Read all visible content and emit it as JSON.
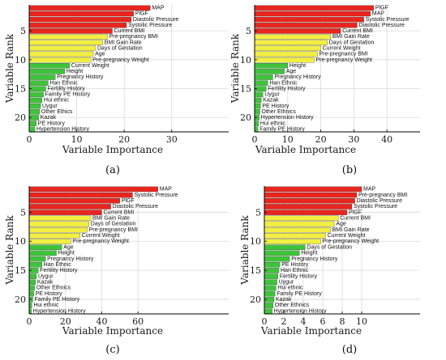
{
  "colors": {
    "red": "#e8261e",
    "yellow": "#f2ef42",
    "green": "#3ec43a",
    "axis": "#000000",
    "grid": "#d9d9d9"
  },
  "chart_data": [
    {
      "type": "bar",
      "orientation": "horizontal",
      "caption": "(a)",
      "xlabel": "Variable Importance",
      "ylabel": "Variable Rank",
      "xlim": [
        0,
        42
      ],
      "xticks": [
        0,
        10,
        20,
        30
      ],
      "yticks": [
        5,
        10,
        15,
        20
      ],
      "grid": true,
      "labels": [
        "MAP",
        "PlGF",
        "Diastolic Pressure",
        "Systolic Pressure",
        "Current BMI",
        "Pre-pregnancy BMI",
        "BMI Gain Rate",
        "Days of Gestation",
        "Age",
        "Pre-pregnancy Weight",
        "Current Weight",
        "Height",
        "Pregnancy History",
        "Han Ethnic",
        "Fertility History",
        "Family PE History",
        "Hui ethnic",
        "Uygur",
        "Other Ethics",
        "Kazak",
        "PE History",
        "Hypertension History"
      ],
      "values": [
        25.5,
        22,
        21.5,
        20.5,
        17.5,
        16.5,
        15.5,
        14,
        13.5,
        13,
        8.5,
        7.5,
        5.5,
        4,
        3.5,
        3,
        2.7,
        2.4,
        2.2,
        2,
        1.5,
        1.2
      ],
      "groups": [
        "red",
        "red",
        "red",
        "red",
        "red",
        "yellow",
        "yellow",
        "yellow",
        "yellow",
        "yellow",
        "green",
        "green",
        "green",
        "green",
        "green",
        "green",
        "green",
        "green",
        "green",
        "green",
        "green",
        "green"
      ]
    },
    {
      "type": "bar",
      "orientation": "horizontal",
      "caption": "(b)",
      "xlabel": "Variable Importance",
      "ylabel": "Variable Rank",
      "xlim": [
        0,
        50
      ],
      "xticks": [
        0,
        10,
        20,
        30,
        40
      ],
      "yticks": [
        5,
        10,
        15,
        20
      ],
      "grid": true,
      "labels": [
        "PlGF",
        "MAP",
        "Systolic Pressure",
        "Diastolic Pressure",
        "Current BMI",
        "BMI Gain Rate",
        "Days of Gestation",
        "Current Weight",
        "Pre-pregnancy BMI",
        "Pre-pregnancy Weight",
        "Height",
        "Age",
        "Pregnancy History",
        "Han Ethnic",
        "Fertility History",
        "Uygur",
        "Kazak",
        "PE History",
        "Other Ethnics",
        "Hypertension History",
        "Hui ethnic",
        "Family PE History"
      ],
      "values": [
        36,
        35,
        33,
        31,
        26,
        23,
        22,
        20,
        19,
        18,
        10,
        9,
        5.5,
        4,
        3.5,
        2.5,
        2,
        1.8,
        1.6,
        1.4,
        1.2,
        1.0
      ],
      "groups": [
        "red",
        "red",
        "red",
        "red",
        "red",
        "yellow",
        "yellow",
        "yellow",
        "yellow",
        "yellow",
        "green",
        "green",
        "green",
        "green",
        "green",
        "green",
        "green",
        "green",
        "green",
        "green",
        "green",
        "green"
      ]
    },
    {
      "type": "bar",
      "orientation": "horizontal",
      "caption": "(c)",
      "xlabel": "Variable Importance",
      "ylabel": "Variable Rank",
      "xlim": [
        0,
        110
      ],
      "xticks": [
        0,
        20,
        40,
        60
      ],
      "yticks": [
        5,
        10,
        15,
        20
      ],
      "grid": true,
      "labels": [
        "MAP",
        "Systolic Pressure",
        "PlGF",
        "Diastolic Pressure",
        "Current BMI",
        "BMI Gain Rate",
        "Days of Gestation",
        "Pre-pregnancy BMI",
        "Current Weight",
        "Pre-pregnancy Weight",
        "Age",
        "Height",
        "Pregnancy History",
        "Han Ethnic",
        "Fertility History",
        "Uygur",
        "Kazak",
        "Other Ethnics",
        "PE History",
        "Family PE History",
        "Hui ethnic",
        "Hypertension History"
      ],
      "values": [
        71,
        57,
        50,
        45,
        40,
        34,
        33,
        32,
        28,
        23,
        18,
        15,
        9,
        7,
        5,
        4,
        3.5,
        3,
        2.5,
        2,
        1.5,
        1.2
      ],
      "groups": [
        "red",
        "red",
        "red",
        "red",
        "red",
        "yellow",
        "yellow",
        "yellow",
        "yellow",
        "yellow",
        "green",
        "green",
        "green",
        "green",
        "green",
        "green",
        "green",
        "green",
        "green",
        "green",
        "green",
        "green"
      ]
    },
    {
      "type": "bar",
      "orientation": "horizontal",
      "caption": "(d)",
      "xlabel": "Variable Importance",
      "ylabel": "Variable Rank",
      "xlim": [
        0,
        16
      ],
      "xticks": [
        0,
        2,
        4,
        6,
        8,
        10
      ],
      "yticks": [
        5,
        10,
        15,
        20
      ],
      "grid": true,
      "labels": [
        "MAP",
        "Pre-pregnancy BMI",
        "Diastolic Pressure",
        "Systolic Pressure",
        "PlGF",
        "Current BMI",
        "Age",
        "BMI Gain Rate",
        "Current Weight",
        "Pre-pregnancy Weight",
        "Days of Gestation",
        "Height",
        "Pregnancy History",
        "PE History",
        "Han Ethnic",
        "Fertility History",
        "Uygur",
        "Hui ethnic",
        "Family PE History",
        "Kazak",
        "Other Ethnics",
        "Hypertension History"
      ],
      "values": [
        10,
        9.5,
        9.3,
        9,
        8.5,
        7.6,
        7.2,
        6.8,
        6.3,
        5.8,
        4.2,
        3.6,
        2.6,
        1.6,
        1.5,
        1.4,
        1.3,
        1.2,
        1.1,
        1.0,
        0.9,
        0.8
      ],
      "groups": [
        "red",
        "red",
        "red",
        "red",
        "red",
        "yellow",
        "yellow",
        "yellow",
        "yellow",
        "yellow",
        "green",
        "green",
        "green",
        "green",
        "green",
        "green",
        "green",
        "green",
        "green",
        "green",
        "green",
        "green"
      ]
    }
  ]
}
